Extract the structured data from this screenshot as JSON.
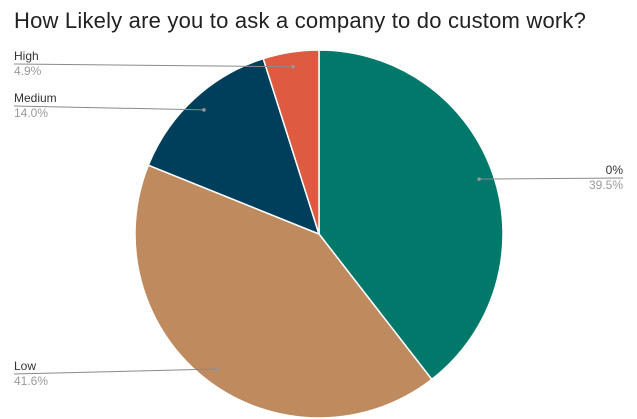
{
  "chart_data": {
    "type": "pie",
    "title": "How Likely are you to ask a company to do custom work?",
    "slices": [
      {
        "name": "0%",
        "value": 39.5,
        "label": "39.5%",
        "color": "#00796b"
      },
      {
        "name": "Low",
        "value": 41.6,
        "label": "41.6%",
        "color": "#be8a5e"
      },
      {
        "name": "Medium",
        "value": 14.0,
        "label": "14.0%",
        "color": "#003f5c"
      },
      {
        "name": "High",
        "value": 4.9,
        "label": "4.9%",
        "color": "#de5a40"
      }
    ],
    "start": "12 o'clock",
    "direction": "clockwise",
    "legend": "none",
    "label_style": "callout lines with name and percent"
  }
}
